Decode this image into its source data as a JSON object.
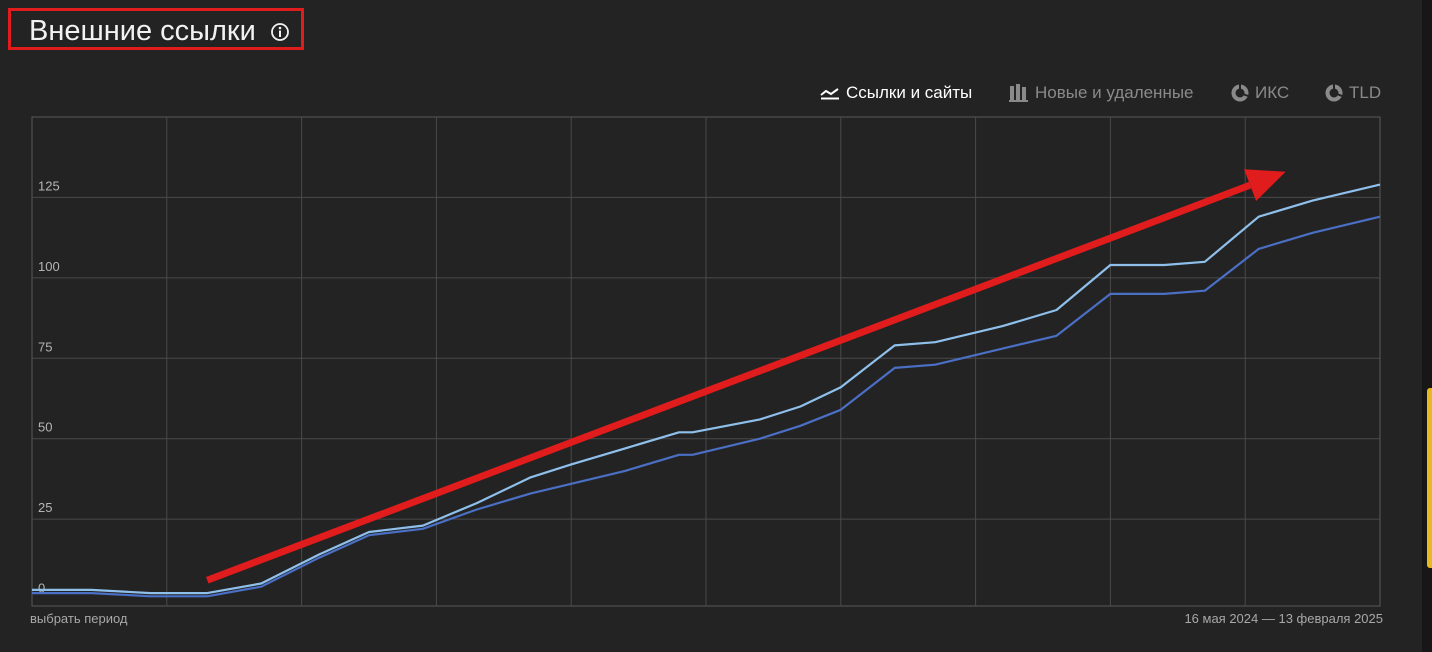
{
  "header": {
    "title": "Внешние ссылки",
    "info_icon": "info-circle-icon",
    "highlight_color": "#e01c1c"
  },
  "tabs": [
    {
      "label": "Ссылки и сайты",
      "icon": "line-chart-icon",
      "active": true
    },
    {
      "label": "Новые и удаленные",
      "icon": "bar-chart-icon",
      "active": false
    },
    {
      "label": "ИКС",
      "icon": "pie-chart-icon",
      "active": false
    },
    {
      "label": "TLD",
      "icon": "pie-chart-icon",
      "active": false
    }
  ],
  "footer": {
    "period_link": "выбрать период",
    "date_range": "16 мая 2024 — 13 февраля 2025"
  },
  "chart_data": {
    "type": "line",
    "ylim": [
      -2,
      150
    ],
    "yticks": [
      0,
      25,
      50,
      75,
      100,
      125
    ],
    "x_gridlines": 9,
    "grid": true,
    "series": [
      {
        "color": "#8fc0ec",
        "values": [
          3,
          3,
          2,
          2,
          5,
          14,
          21,
          23,
          30,
          38,
          42,
          47,
          52,
          52,
          56,
          60,
          66,
          79,
          80,
          85,
          90,
          104,
          104,
          105,
          119,
          124,
          129
        ]
      },
      {
        "color": "#4a6fc4",
        "values": [
          2,
          2,
          1,
          1,
          4,
          13,
          20,
          22,
          28,
          33,
          36,
          40,
          45,
          45,
          50,
          54,
          59,
          72,
          73,
          78,
          82,
          95,
          95,
          96,
          109,
          114,
          119
        ]
      }
    ],
    "x_positions": [
      0,
      0.044,
      0.088,
      0.13,
      0.17,
      0.213,
      0.25,
      0.29,
      0.33,
      0.37,
      0.4,
      0.44,
      0.48,
      0.49,
      0.54,
      0.57,
      0.6,
      0.64,
      0.67,
      0.72,
      0.76,
      0.8,
      0.84,
      0.87,
      0.91,
      0.95,
      1.0
    ],
    "annotation": {
      "type": "arrow",
      "color": "#e01c1c",
      "from": [
        0.13,
        6
      ],
      "to": [
        0.93,
        133
      ]
    }
  }
}
